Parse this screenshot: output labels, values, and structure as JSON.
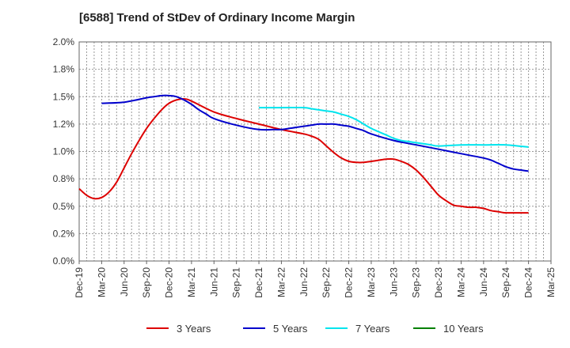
{
  "title": "[6588]  Trend of StDev of Ordinary Income Margin",
  "chart_data": {
    "type": "line",
    "title": "[6588]  Trend of StDev of Ordinary Income Margin",
    "xlabel": "",
    "ylabel": "",
    "x_ticks": [
      "Dec-19",
      "Mar-20",
      "Jun-20",
      "Sep-20",
      "Dec-20",
      "Mar-21",
      "Jun-21",
      "Sep-21",
      "Dec-21",
      "Mar-22",
      "Jun-22",
      "Sep-22",
      "Dec-22",
      "Mar-23",
      "Jun-23",
      "Sep-23",
      "Dec-23",
      "Mar-24",
      "Jun-24",
      "Sep-24",
      "Dec-24",
      "Mar-25"
    ],
    "y_ticks": [
      "0.0%",
      "0.2%",
      "0.5%",
      "0.8%",
      "1.0%",
      "1.2%",
      "1.5%",
      "1.8%",
      "2.0%"
    ],
    "y_tick_values": [
      0,
      0.25,
      0.5,
      0.75,
      1.0,
      1.25,
      1.5,
      1.75,
      2.0
    ],
    "ylim": [
      0,
      2.0
    ],
    "grid": true,
    "legend_position": "bottom",
    "series": [
      {
        "name": "3 Years",
        "color": "#dd0000",
        "x": [
          "Dec-19",
          "Jan-20",
          "Feb-20",
          "Mar-20",
          "Apr-20",
          "May-20",
          "Jun-20",
          "Jul-20",
          "Aug-20",
          "Sep-20",
          "Oct-20",
          "Nov-20",
          "Dec-20",
          "Jan-21",
          "Feb-21",
          "Mar-21",
          "Jun-21",
          "Sep-21",
          "Dec-21",
          "Mar-22",
          "Jun-22",
          "Jul-22",
          "Aug-22",
          "Sep-22",
          "Oct-22",
          "Nov-22",
          "Dec-22",
          "Jan-23",
          "Feb-23",
          "Mar-23",
          "Apr-23",
          "May-23",
          "Jun-23",
          "Jul-23",
          "Aug-23",
          "Sep-23",
          "Oct-23",
          "Nov-23",
          "Dec-23",
          "Jan-24",
          "Feb-24",
          "Mar-24",
          "Apr-24",
          "May-24",
          "Jun-24",
          "Jul-24",
          "Aug-24",
          "Sep-24",
          "Dec-24"
        ],
        "values": [
          0.66,
          0.6,
          0.57,
          0.58,
          0.63,
          0.72,
          0.85,
          0.98,
          1.1,
          1.21,
          1.3,
          1.38,
          1.44,
          1.47,
          1.48,
          1.46,
          1.36,
          1.3,
          1.25,
          1.2,
          1.16,
          1.14,
          1.11,
          1.05,
          0.99,
          0.94,
          0.91,
          0.9,
          0.9,
          0.91,
          0.92,
          0.93,
          0.93,
          0.91,
          0.88,
          0.83,
          0.76,
          0.68,
          0.6,
          0.55,
          0.51,
          0.5,
          0.49,
          0.49,
          0.48,
          0.46,
          0.45,
          0.44,
          0.44
        ]
      },
      {
        "name": "5 Years",
        "color": "#0000cc",
        "x": [
          "Mar-20",
          "Jun-20",
          "Sep-20",
          "Oct-20",
          "Nov-20",
          "Dec-20",
          "Jan-21",
          "Feb-21",
          "Mar-21",
          "Apr-21",
          "May-21",
          "Jun-21",
          "Sep-21",
          "Dec-21",
          "Feb-22",
          "Mar-22",
          "Apr-22",
          "May-22",
          "Jun-22",
          "Jul-22",
          "Aug-22",
          "Sep-22",
          "Oct-22",
          "Nov-22",
          "Dec-22",
          "Jan-23",
          "Feb-23",
          "Mar-23",
          "Jun-23",
          "Sep-23",
          "Dec-23",
          "Mar-24",
          "Jun-24",
          "Jul-24",
          "Aug-24",
          "Sep-24",
          "Oct-24",
          "Nov-24",
          "Dec-24"
        ],
        "values": [
          1.44,
          1.45,
          1.49,
          1.5,
          1.51,
          1.51,
          1.5,
          1.47,
          1.43,
          1.38,
          1.34,
          1.3,
          1.24,
          1.2,
          1.2,
          1.2,
          1.21,
          1.22,
          1.23,
          1.24,
          1.25,
          1.25,
          1.25,
          1.24,
          1.23,
          1.21,
          1.19,
          1.16,
          1.1,
          1.06,
          1.02,
          0.98,
          0.94,
          0.92,
          0.89,
          0.86,
          0.84,
          0.83,
          0.82
        ]
      },
      {
        "name": "7 Years",
        "color": "#00e5ee",
        "x": [
          "Dec-21",
          "Mar-22",
          "Jun-22",
          "Jul-22",
          "Aug-22",
          "Sep-22",
          "Oct-22",
          "Nov-22",
          "Dec-22",
          "Jan-23",
          "Feb-23",
          "Mar-23",
          "Apr-23",
          "May-23",
          "Jun-23",
          "Jul-23",
          "Aug-23",
          "Sep-23",
          "Oct-23",
          "Nov-23",
          "Dec-23",
          "Mar-24",
          "Jun-24",
          "Sep-24",
          "Dec-24"
        ],
        "values": [
          1.4,
          1.4,
          1.4,
          1.39,
          1.38,
          1.37,
          1.36,
          1.34,
          1.32,
          1.29,
          1.25,
          1.21,
          1.18,
          1.15,
          1.12,
          1.1,
          1.09,
          1.08,
          1.07,
          1.06,
          1.05,
          1.06,
          1.06,
          1.06,
          1.04
        ]
      },
      {
        "name": "10 Years",
        "color": "#008000",
        "x": [],
        "values": []
      }
    ]
  }
}
